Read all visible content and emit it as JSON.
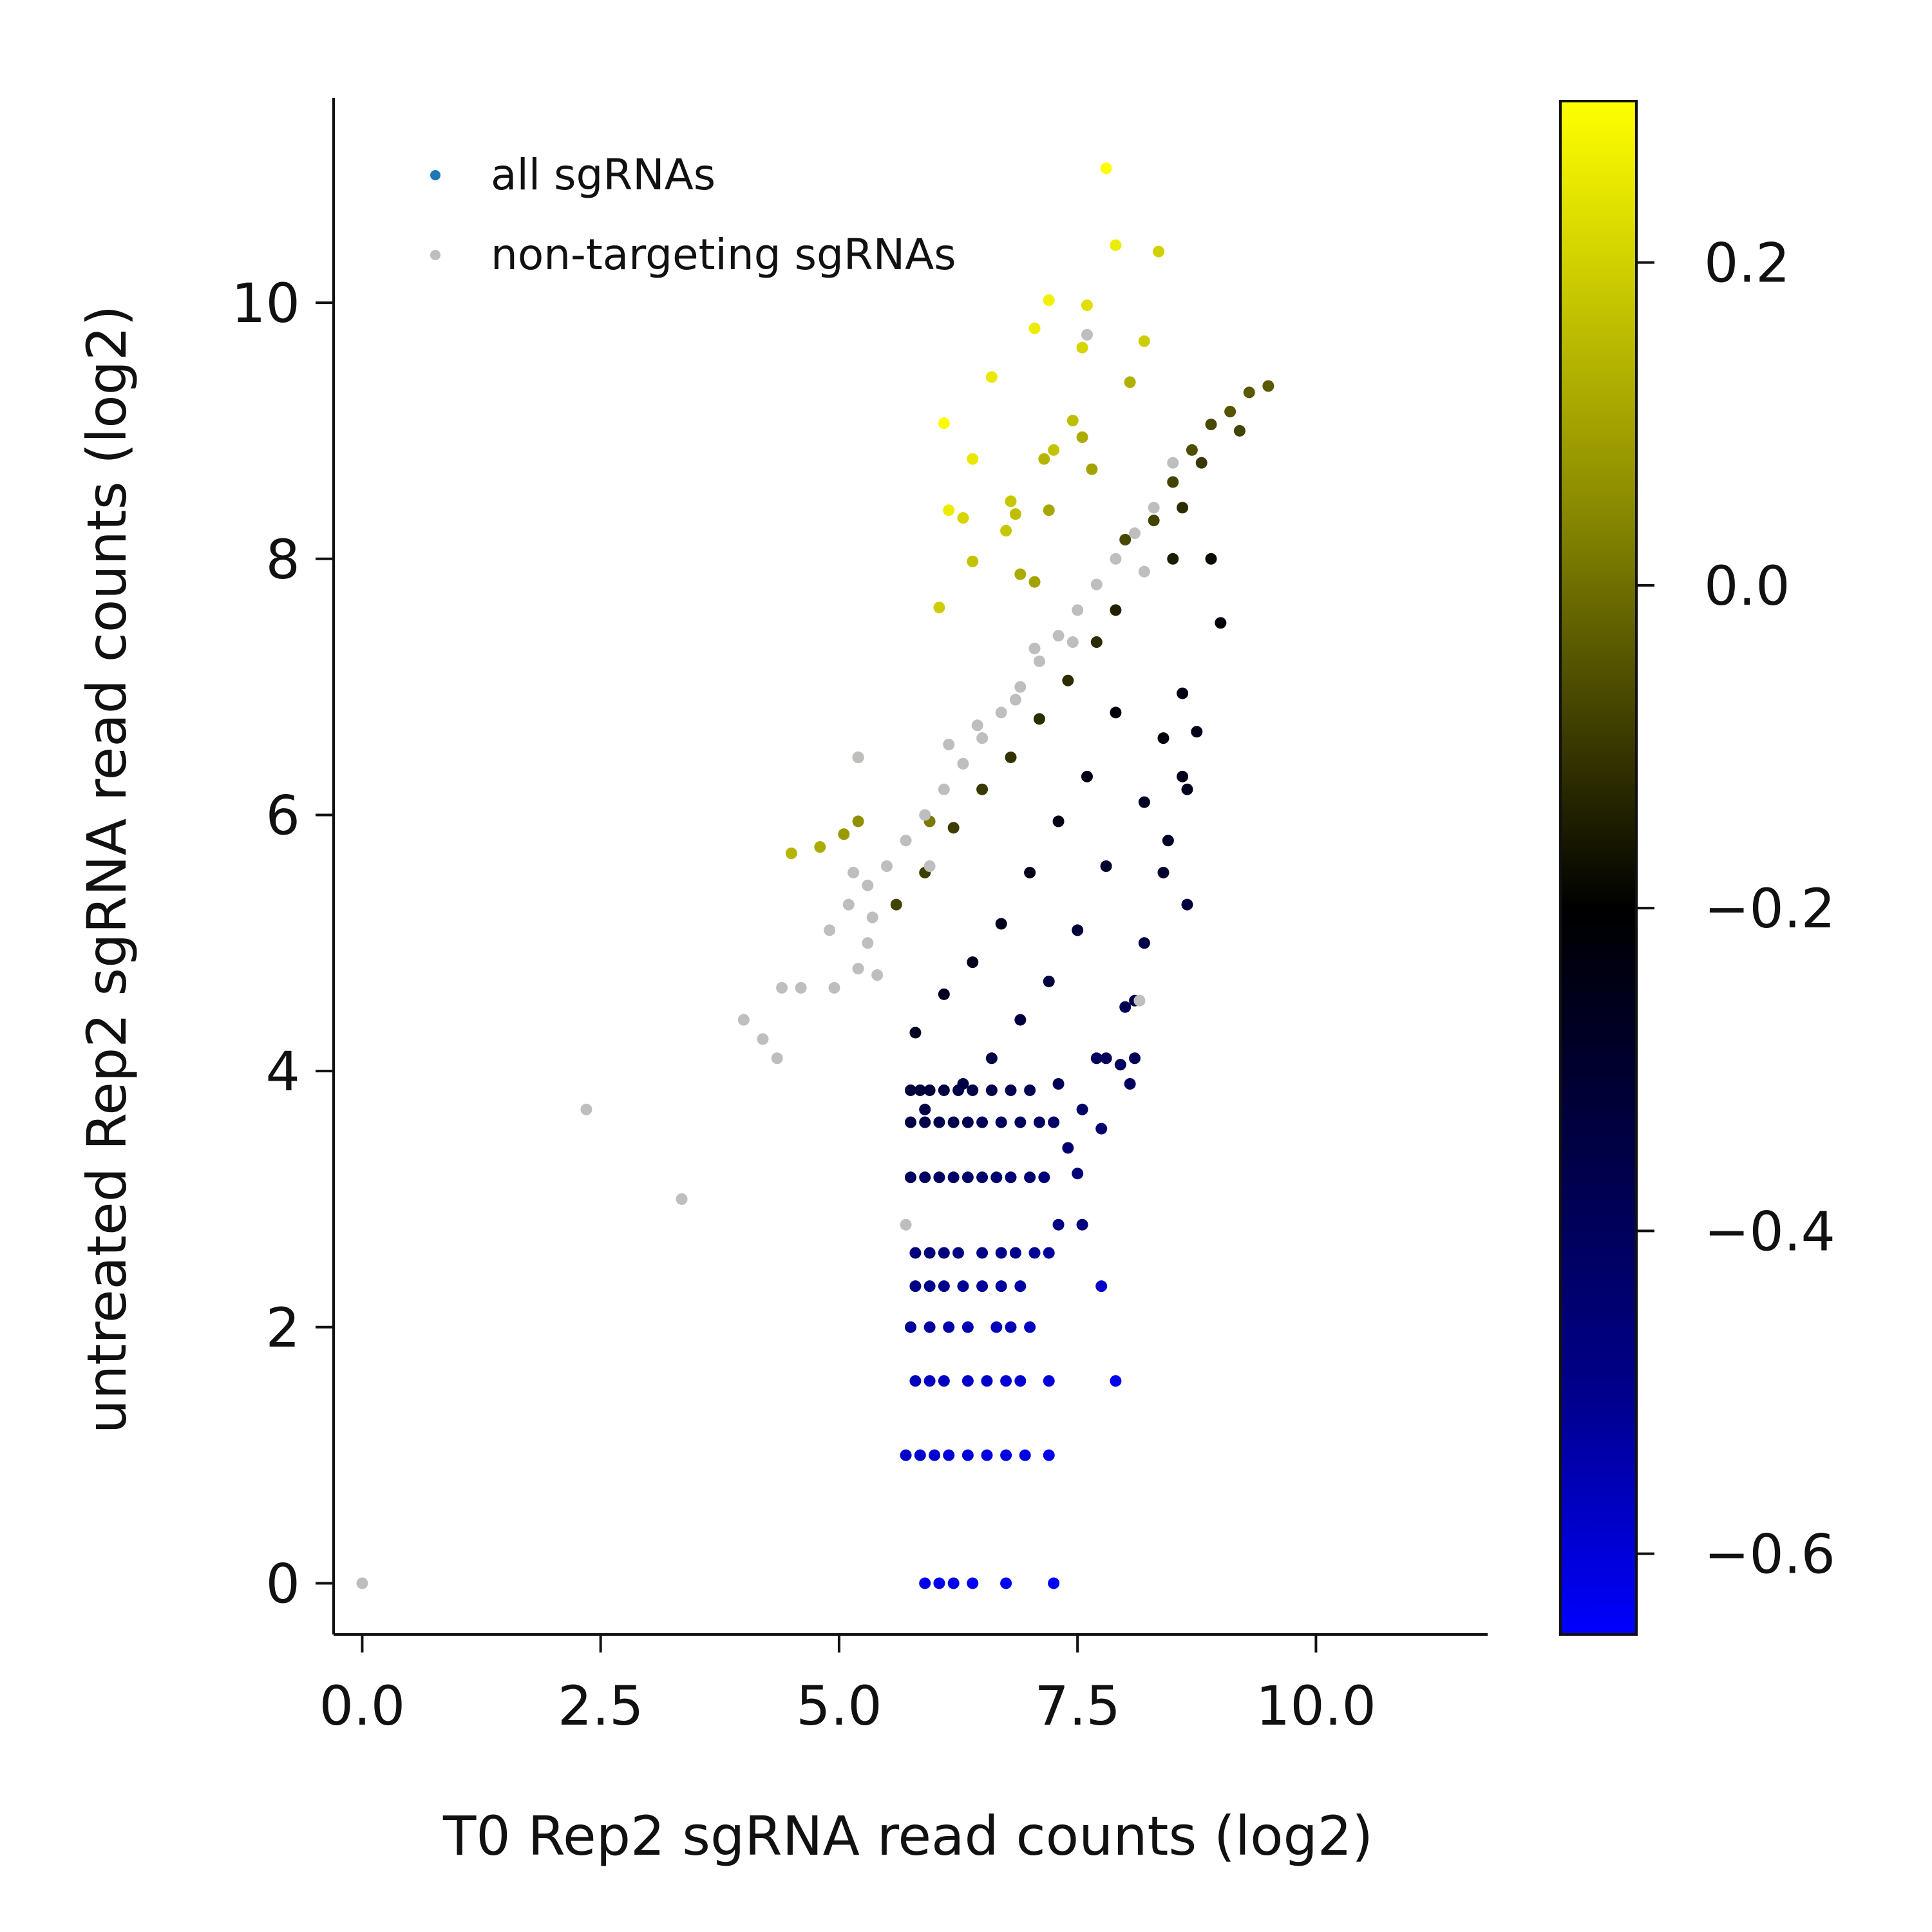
{
  "chart_data": {
    "type": "scatter",
    "xlabel": "T0 Rep2 sgRNA read counts (log2)",
    "ylabel": "untreated Rep2 sgRNA read counts (log2)",
    "xlim": [
      -0.3,
      11.8
    ],
    "ylim": [
      -0.4,
      11.6
    ],
    "x_ticks": [
      0.0,
      2.5,
      5.0,
      7.5,
      10.0
    ],
    "x_tick_labels": [
      "0.0",
      "2.5",
      "5.0",
      "7.5",
      "10.0"
    ],
    "y_ticks": [
      0,
      2,
      4,
      6,
      8,
      10
    ],
    "y_tick_labels": [
      "0",
      "2",
      "4",
      "6",
      "8",
      "10"
    ],
    "grid": false,
    "legend": {
      "placement": "top-left",
      "entries": [
        {
          "label": "all sgRNAs",
          "color": "#1f77b4"
        },
        {
          "label": "non-targeting sgRNAs",
          "color": "#bebebe"
        }
      ]
    },
    "colorbar": {
      "range": [
        -0.65,
        0.3
      ],
      "ticks": [
        0.2,
        0.0,
        -0.2,
        -0.4,
        -0.6
      ],
      "tick_labels": [
        "0.2",
        "0.0",
        "−0.2",
        "−0.4",
        "−0.6"
      ],
      "colormap_stops": [
        {
          "value": -0.65,
          "color": "#0000ff"
        },
        {
          "value": -0.5,
          "color": "#00008b"
        },
        {
          "value": -0.2,
          "color": "#000000"
        },
        {
          "value": 0.05,
          "color": "#8b8b00"
        },
        {
          "value": 0.3,
          "color": "#ffff00"
        }
      ]
    },
    "series": [
      {
        "name": "all sgRNAs",
        "colored_by": "log2 fold change",
        "points": [
          [
            7.8,
            11.05,
            0.3
          ],
          [
            7.9,
            10.45,
            0.26
          ],
          [
            8.35,
            10.4,
            0.2
          ],
          [
            7.2,
            10.02,
            0.27
          ],
          [
            7.6,
            9.98,
            0.23
          ],
          [
            7.05,
            9.8,
            0.26
          ],
          [
            7.55,
            9.65,
            0.21
          ],
          [
            8.2,
            9.7,
            0.19
          ],
          [
            6.6,
            9.42,
            0.25
          ],
          [
            8.05,
            9.38,
            0.13
          ],
          [
            6.1,
            9.06,
            0.29
          ],
          [
            7.45,
            9.08,
            0.16
          ],
          [
            7.25,
            8.85,
            0.17
          ],
          [
            7.55,
            8.95,
            0.12
          ],
          [
            6.4,
            8.78,
            0.25
          ],
          [
            7.15,
            8.78,
            0.14
          ],
          [
            7.65,
            8.7,
            0.1
          ],
          [
            6.8,
            8.45,
            0.18
          ],
          [
            6.85,
            8.35,
            0.16
          ],
          [
            6.15,
            8.38,
            0.26
          ],
          [
            6.3,
            8.32,
            0.21
          ],
          [
            6.75,
            8.22,
            0.18
          ],
          [
            7.2,
            8.38,
            0.11
          ],
          [
            6.4,
            7.98,
            0.17
          ],
          [
            6.9,
            7.88,
            0.12
          ],
          [
            7.05,
            7.82,
            0.1
          ],
          [
            6.05,
            7.62,
            0.19
          ],
          [
            5.2,
            6.45,
            0.1
          ],
          [
            5.95,
            5.95,
            0.02
          ],
          [
            4.5,
            5.7,
            0.14
          ],
          [
            4.8,
            5.75,
            0.12
          ],
          [
            5.05,
            5.85,
            0.08
          ],
          [
            5.2,
            5.95,
            0.06
          ],
          [
            9.5,
            9.35,
            -0.04
          ],
          [
            9.3,
            9.3,
            -0.04
          ],
          [
            9.1,
            9.15,
            -0.05
          ],
          [
            8.9,
            9.05,
            -0.07
          ],
          [
            9.2,
            9.0,
            -0.08
          ],
          [
            8.7,
            8.85,
            -0.06
          ],
          [
            8.5,
            8.6,
            -0.08
          ],
          [
            8.8,
            8.75,
            -0.1
          ],
          [
            8.3,
            8.3,
            -0.08
          ],
          [
            8.6,
            8.4,
            -0.12
          ],
          [
            8.0,
            8.15,
            -0.07
          ],
          [
            8.5,
            8.0,
            -0.15
          ],
          [
            7.9,
            7.6,
            -0.14
          ],
          [
            8.9,
            8.0,
            -0.18
          ],
          [
            9.0,
            7.5,
            -0.22
          ],
          [
            8.6,
            6.95,
            -0.24
          ],
          [
            8.75,
            6.65,
            -0.25
          ],
          [
            8.4,
            6.6,
            -0.22
          ],
          [
            8.6,
            6.3,
            -0.26
          ],
          [
            8.65,
            6.2,
            -0.27
          ],
          [
            8.45,
            5.8,
            -0.28
          ],
          [
            8.4,
            5.55,
            -0.3
          ],
          [
            8.65,
            5.3,
            -0.33
          ],
          [
            7.7,
            7.35,
            -0.12
          ],
          [
            7.4,
            7.05,
            -0.12
          ],
          [
            7.1,
            6.75,
            -0.12
          ],
          [
            6.8,
            6.45,
            -0.11
          ],
          [
            6.5,
            6.2,
            -0.1
          ],
          [
            6.2,
            5.9,
            -0.09
          ],
          [
            5.9,
            5.55,
            -0.09
          ],
          [
            5.6,
            5.3,
            -0.08
          ],
          [
            7.9,
            6.8,
            -0.22
          ],
          [
            7.6,
            6.3,
            -0.24
          ],
          [
            7.3,
            5.95,
            -0.24
          ],
          [
            7.0,
            5.55,
            -0.25
          ],
          [
            6.7,
            5.15,
            -0.26
          ],
          [
            6.4,
            4.85,
            -0.26
          ],
          [
            6.1,
            4.6,
            -0.26
          ],
          [
            5.8,
            4.3,
            -0.27
          ],
          [
            8.2,
            6.1,
            -0.28
          ],
          [
            7.8,
            5.6,
            -0.3
          ],
          [
            7.5,
            5.1,
            -0.32
          ],
          [
            7.2,
            4.7,
            -0.34
          ],
          [
            6.9,
            4.4,
            -0.34
          ],
          [
            6.6,
            4.1,
            -0.35
          ],
          [
            6.3,
            3.9,
            -0.35
          ],
          [
            5.9,
            3.7,
            -0.35
          ],
          [
            8.2,
            5.0,
            -0.35
          ],
          [
            8.0,
            4.5,
            -0.38
          ],
          [
            7.7,
            4.1,
            -0.4
          ],
          [
            7.8,
            4.1,
            -0.39
          ],
          [
            7.95,
            4.05,
            -0.4
          ],
          [
            8.1,
            4.1,
            -0.39
          ],
          [
            8.05,
            3.9,
            -0.41
          ],
          [
            8.1,
            4.55,
            -0.36
          ],
          [
            7.3,
            3.9,
            -0.39
          ],
          [
            7.55,
            3.7,
            -0.42
          ],
          [
            7.75,
            3.55,
            -0.44
          ],
          [
            7.4,
            3.4,
            -0.44
          ],
          [
            7.5,
            3.2,
            -0.46
          ],
          [
            7.3,
            2.8,
            -0.48
          ],
          [
            7.55,
            2.8,
            -0.47
          ],
          [
            5.75,
            3.85,
            -0.33
          ],
          [
            5.85,
            3.85,
            -0.33
          ],
          [
            5.95,
            3.85,
            -0.33
          ],
          [
            6.1,
            3.85,
            -0.34
          ],
          [
            6.25,
            3.85,
            -0.35
          ],
          [
            6.4,
            3.85,
            -0.35
          ],
          [
            6.6,
            3.85,
            -0.36
          ],
          [
            6.8,
            3.85,
            -0.37
          ],
          [
            7.0,
            3.85,
            -0.38
          ],
          [
            5.75,
            3.6,
            -0.35
          ],
          [
            5.9,
            3.6,
            -0.36
          ],
          [
            6.05,
            3.6,
            -0.37
          ],
          [
            6.2,
            3.6,
            -0.37
          ],
          [
            6.35,
            3.6,
            -0.38
          ],
          [
            6.5,
            3.6,
            -0.39
          ],
          [
            6.7,
            3.6,
            -0.4
          ],
          [
            6.9,
            3.6,
            -0.4
          ],
          [
            7.1,
            3.6,
            -0.41
          ],
          [
            7.25,
            3.6,
            -0.42
          ],
          [
            5.75,
            3.17,
            -0.4
          ],
          [
            5.9,
            3.17,
            -0.41
          ],
          [
            6.05,
            3.17,
            -0.41
          ],
          [
            6.2,
            3.17,
            -0.42
          ],
          [
            6.35,
            3.17,
            -0.43
          ],
          [
            6.5,
            3.17,
            -0.43
          ],
          [
            6.65,
            3.17,
            -0.44
          ],
          [
            6.8,
            3.17,
            -0.45
          ],
          [
            7.0,
            3.17,
            -0.45
          ],
          [
            7.15,
            3.17,
            -0.46
          ],
          [
            5.8,
            2.58,
            -0.46
          ],
          [
            5.95,
            2.58,
            -0.47
          ],
          [
            6.1,
            2.58,
            -0.47
          ],
          [
            6.25,
            2.58,
            -0.48
          ],
          [
            6.5,
            2.58,
            -0.49
          ],
          [
            6.7,
            2.58,
            -0.5
          ],
          [
            6.85,
            2.58,
            -0.5
          ],
          [
            7.05,
            2.58,
            -0.51
          ],
          [
            7.2,
            2.58,
            -0.52
          ],
          [
            5.8,
            2.32,
            -0.49
          ],
          [
            5.95,
            2.32,
            -0.5
          ],
          [
            6.1,
            2.32,
            -0.5
          ],
          [
            6.3,
            2.32,
            -0.51
          ],
          [
            6.5,
            2.32,
            -0.52
          ],
          [
            6.7,
            2.32,
            -0.53
          ],
          [
            6.9,
            2.32,
            -0.53
          ],
          [
            7.75,
            2.32,
            -0.58
          ],
          [
            5.75,
            2.0,
            -0.52
          ],
          [
            5.95,
            2.0,
            -0.53
          ],
          [
            6.15,
            2.0,
            -0.54
          ],
          [
            6.35,
            2.0,
            -0.55
          ],
          [
            6.65,
            2.0,
            -0.56
          ],
          [
            6.8,
            2.0,
            -0.56
          ],
          [
            7.0,
            2.0,
            -0.57
          ],
          [
            5.8,
            1.58,
            -0.56
          ],
          [
            5.95,
            1.58,
            -0.57
          ],
          [
            6.1,
            1.58,
            -0.57
          ],
          [
            6.35,
            1.58,
            -0.58
          ],
          [
            6.55,
            1.58,
            -0.58
          ],
          [
            6.75,
            1.58,
            -0.59
          ],
          [
            6.9,
            1.58,
            -0.59
          ],
          [
            7.2,
            1.58,
            -0.6
          ],
          [
            7.9,
            1.58,
            -0.63
          ],
          [
            5.7,
            1.0,
            -0.58
          ],
          [
            5.85,
            1.0,
            -0.59
          ],
          [
            6.0,
            1.0,
            -0.59
          ],
          [
            6.15,
            1.0,
            -0.6
          ],
          [
            6.35,
            1.0,
            -0.6
          ],
          [
            6.55,
            1.0,
            -0.61
          ],
          [
            6.75,
            1.0,
            -0.61
          ],
          [
            6.95,
            1.0,
            -0.62
          ],
          [
            7.2,
            1.0,
            -0.63
          ],
          [
            5.9,
            0.0,
            -0.62
          ],
          [
            6.05,
            0.0,
            -0.63
          ],
          [
            6.2,
            0.0,
            -0.63
          ],
          [
            6.4,
            0.0,
            -0.64
          ],
          [
            6.75,
            0.0,
            -0.64
          ],
          [
            7.25,
            0.0,
            -0.65
          ]
        ]
      },
      {
        "name": "non-targeting sgRNAs",
        "color": "#bebebe",
        "points": [
          [
            7.6,
            9.75
          ],
          [
            8.5,
            8.75
          ],
          [
            8.3,
            8.4
          ],
          [
            8.1,
            8.2
          ],
          [
            7.9,
            8.0
          ],
          [
            7.7,
            7.8
          ],
          [
            7.5,
            7.6
          ],
          [
            7.3,
            7.4
          ],
          [
            7.1,
            7.2
          ],
          [
            6.9,
            7.0
          ],
          [
            6.7,
            6.8
          ],
          [
            6.5,
            6.6
          ],
          [
            6.3,
            6.4
          ],
          [
            6.1,
            6.2
          ],
          [
            5.9,
            6.0
          ],
          [
            5.7,
            5.8
          ],
          [
            5.5,
            5.6
          ],
          [
            5.3,
            5.45
          ],
          [
            5.15,
            5.55
          ],
          [
            5.35,
            5.2
          ],
          [
            5.3,
            5.0
          ],
          [
            5.4,
            4.75
          ],
          [
            5.2,
            4.8
          ],
          [
            4.95,
            4.65
          ],
          [
            4.6,
            4.65
          ],
          [
            4.4,
            4.65
          ],
          [
            4.0,
            4.4
          ],
          [
            4.2,
            4.25
          ],
          [
            4.35,
            4.1
          ],
          [
            2.35,
            3.7
          ],
          [
            3.35,
            3.0
          ],
          [
            5.7,
            2.8
          ],
          [
            8.15,
            4.55
          ],
          [
            0.0,
            0.0
          ],
          [
            4.9,
            5.1
          ],
          [
            5.1,
            5.3
          ],
          [
            5.2,
            6.45
          ],
          [
            8.2,
            7.9
          ],
          [
            6.85,
            6.9
          ],
          [
            7.05,
            7.3
          ],
          [
            7.45,
            7.35
          ],
          [
            6.45,
            6.7
          ],
          [
            5.95,
            5.6
          ],
          [
            6.15,
            6.55
          ]
        ]
      }
    ]
  }
}
